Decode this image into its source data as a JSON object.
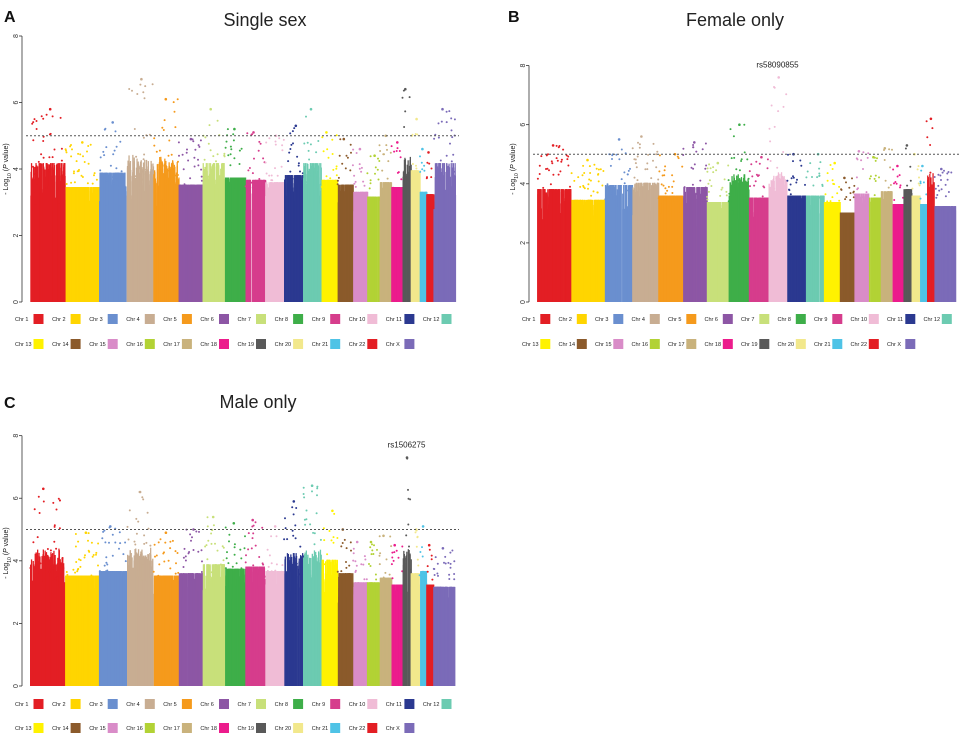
{
  "chart_data": [
    {
      "type": "scatter",
      "panel_letter": "A",
      "title": "Single sex",
      "xlabel": "",
      "ylabel": "-Log10 (P value)",
      "ylabel_parts": {
        "main": "- Log",
        "sub": "10",
        "open": " (",
        "ital": "P",
        "close": " value)"
      },
      "ylim": [
        0,
        8
      ],
      "yticks": [
        "0",
        "2",
        "4",
        "6",
        "8"
      ],
      "threshold": 5,
      "annotations": [],
      "peaks": [
        5.8,
        4.8,
        5.4,
        6.7,
        6.1,
        4.9,
        5.8,
        5.2,
        5.1,
        5.0,
        5.3,
        5.8,
        5.1,
        4.9,
        4.6,
        4.4,
        5.0,
        4.8,
        6.4,
        5.5,
        4.6,
        4.5,
        5.8
      ],
      "legend": [
        "Chr 1",
        "Chr 2",
        "Chr 3",
        "Chr 4",
        "Chr 5",
        "Chr 6",
        "Chr 7",
        "Chr 8",
        "Chr 9",
        "Chr 10",
        "Chr 11",
        "Chr 12",
        "Chr 13",
        "Chr 14",
        "Chr 15",
        "Chr 16",
        "Chr 17",
        "Chr 18",
        "Chr 19",
        "Chr 20",
        "Chr 21",
        "Chr 22",
        "Chr X"
      ]
    },
    {
      "type": "scatter",
      "panel_letter": "B",
      "title": "Female only",
      "xlabel": "",
      "ylabel": "-Log10 (P value)",
      "ylabel_parts": {
        "main": "- Log",
        "sub": "10",
        "open": " (",
        "ital": "P",
        "close": " value)"
      },
      "ylim": [
        0,
        9
      ],
      "yticks": [
        "0",
        "2",
        "4",
        "6",
        "8"
      ],
      "threshold": 5,
      "annotations": [
        {
          "label": "rs58090855",
          "chr_index": 9,
          "value": 7.6
        }
      ],
      "peaks": [
        5.3,
        4.8,
        5.5,
        5.6,
        5.0,
        5.4,
        4.7,
        6.0,
        4.9,
        7.6,
        5.0,
        5.0,
        4.7,
        4.2,
        5.1,
        4.9,
        5.2,
        4.6,
        5.3,
        5.0,
        4.6,
        6.2,
        4.5
      ],
      "legend": [
        "Chr 1",
        "Chr 2",
        "Chr 3",
        "Chr 4",
        "Chr 5",
        "Chr 6",
        "Chr 7",
        "Chr 8",
        "Chr 9",
        "Chr 10",
        "Chr 11",
        "Chr 12",
        "Chr 13",
        "Chr 14",
        "Chr 15",
        "Chr 16",
        "Chr 17",
        "Chr 18",
        "Chr 19",
        "Chr 20",
        "Chr 21",
        "Chr 22",
        "Chr X"
      ]
    },
    {
      "type": "scatter",
      "panel_letter": "C",
      "title": "Male only",
      "xlabel": "",
      "ylabel": "-Log10 (P value)",
      "ylabel_parts": {
        "main": "- Log",
        "sub": "10",
        "open": " (",
        "ital": "P",
        "close": " value)"
      },
      "ylim": [
        0,
        8.5
      ],
      "yticks": [
        "0",
        "2",
        "4",
        "6",
        "8"
      ],
      "threshold": 5,
      "annotations": [
        {
          "label": "rs1506275",
          "chr_index": 18,
          "value": 7.3
        }
      ],
      "peaks": [
        6.3,
        4.9,
        5.1,
        6.2,
        4.9,
        5.0,
        5.4,
        5.2,
        5.3,
        5.1,
        5.9,
        6.4,
        5.6,
        5.0,
        4.6,
        4.6,
        4.8,
        4.5,
        7.3,
        5.0,
        5.1,
        4.5,
        4.4
      ],
      "legend": [
        "Chr 1",
        "Chr 2",
        "Chr 3",
        "Chr 4",
        "Chr 5",
        "Chr 6",
        "Chr 7",
        "Chr 8",
        "Chr 9",
        "Chr 10",
        "Chr 11",
        "Chr 12",
        "Chr 13",
        "Chr 14",
        "Chr 15",
        "Chr 16",
        "Chr 17",
        "Chr 18",
        "Chr 19",
        "Chr 20",
        "Chr 21",
        "Chr 22",
        "Chr X"
      ]
    }
  ],
  "colors": {
    "chromosomes": [
      "#e31e24",
      "#e31e24",
      "#ffd500",
      "#6a8fcf",
      "#c8ad92",
      "#f59a1c",
      "#8d56a5",
      "#c8e07a",
      "#3eae49",
      "#d63d8c",
      "#f0bcd6",
      "#2b3990",
      "#6ccbb1",
      "#fff200",
      "#8b5a2b",
      "#d98cc8",
      "#b2d235",
      "#c9b27c",
      "#ec1c8c",
      "#595959",
      "#f2e88c",
      "#4fc3e6",
      "#e31e24",
      "#7b6bb8"
    ],
    "threshold_line": "#555555",
    "axis": "#333333"
  }
}
